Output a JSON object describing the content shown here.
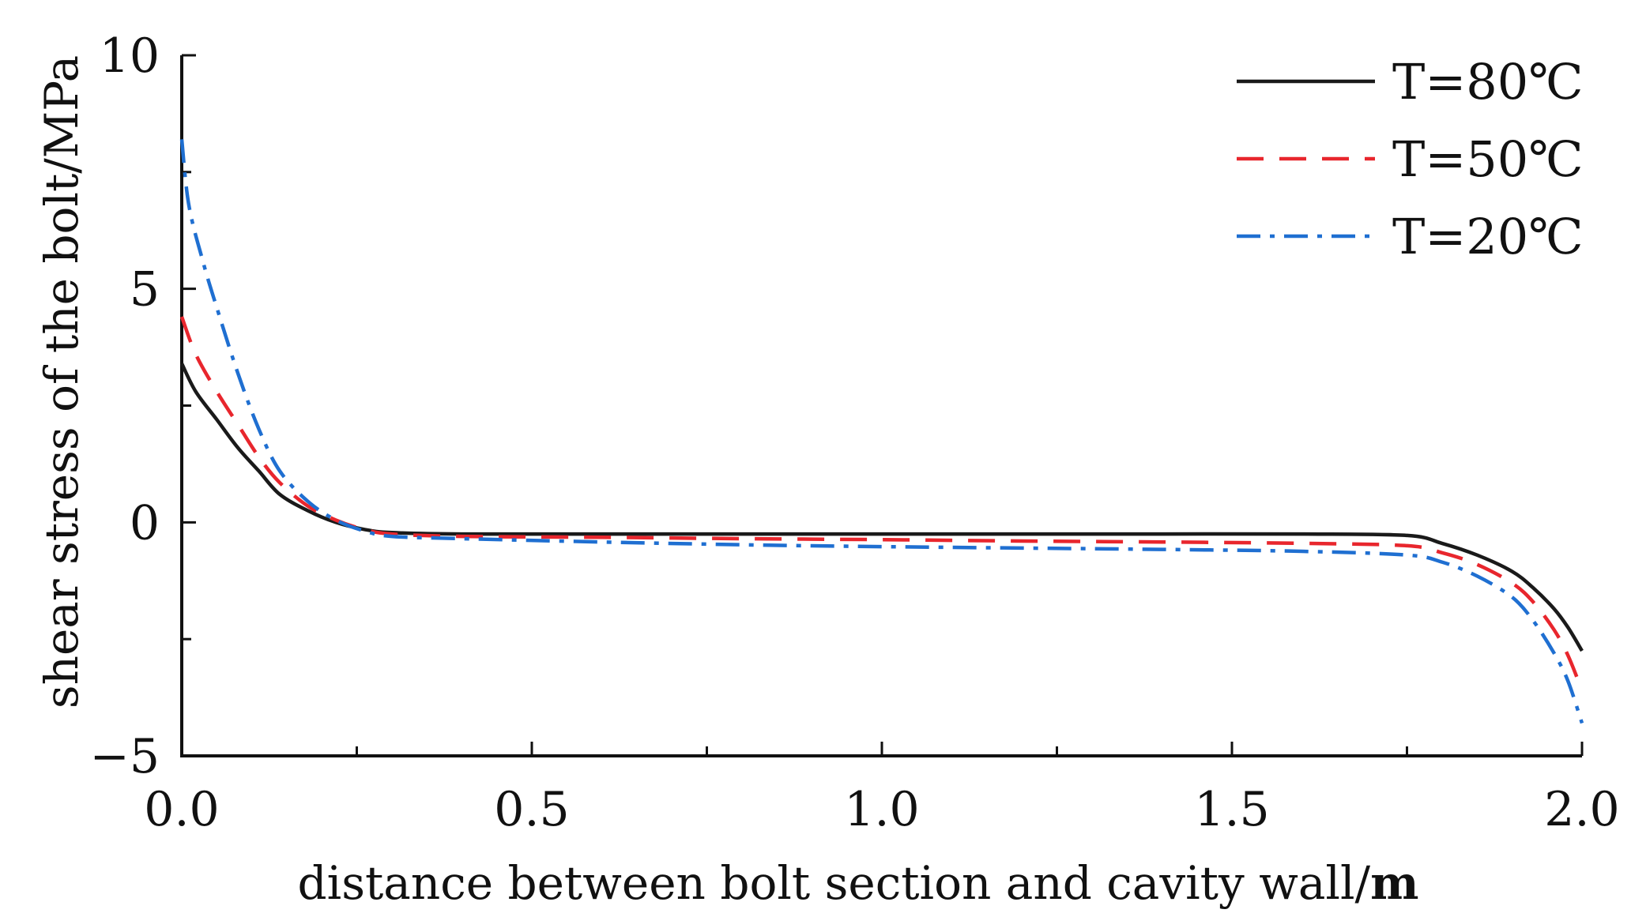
{
  "chart_data": {
    "type": "line",
    "title": "",
    "xlabel": "distance between bolt section and cavity wall/",
    "xlabel_unit": "m",
    "ylabel": "shear stress of the bolt/MPa",
    "xlim": [
      0.0,
      2.0
    ],
    "ylim": [
      -5,
      10
    ],
    "x_ticks": [
      {
        "value": 0.0,
        "label": "0.0"
      },
      {
        "value": 0.5,
        "label": "0.5"
      },
      {
        "value": 1.0,
        "label": "1.0"
      },
      {
        "value": 1.5,
        "label": "1.5"
      },
      {
        "value": 2.0,
        "label": "2.0"
      }
    ],
    "x_minor_ticks": [
      0.25,
      0.75,
      1.25,
      1.75
    ],
    "y_ticks": [
      {
        "value": 10,
        "label": "10"
      },
      {
        "value": 5,
        "label": "5"
      },
      {
        "value": 0,
        "label": "0"
      },
      {
        "value": -5,
        "label": "−5"
      }
    ],
    "y_minor_ticks": [
      7.5,
      2.5,
      -2.5
    ],
    "grid": false,
    "legend_position": "top-right",
    "series": [
      {
        "name": "T=80℃",
        "color": "#1a1a1a",
        "dash": "solid",
        "x": [
          0.0,
          0.02,
          0.05,
          0.08,
          0.11,
          0.14,
          0.18,
          0.22,
          0.26,
          0.3,
          0.4,
          0.6,
          0.8,
          1.0,
          1.2,
          1.4,
          1.6,
          1.75,
          1.8,
          1.85,
          1.9,
          1.93,
          1.96,
          1.98,
          2.0
        ],
        "y": [
          3.4,
          2.8,
          2.2,
          1.6,
          1.1,
          0.6,
          0.25,
          0.0,
          -0.15,
          -0.22,
          -0.25,
          -0.25,
          -0.25,
          -0.25,
          -0.25,
          -0.25,
          -0.25,
          -0.28,
          -0.45,
          -0.7,
          -1.05,
          -1.4,
          -1.85,
          -2.25,
          -2.75
        ]
      },
      {
        "name": "T=50℃",
        "color": "#e8262d",
        "dash": "dashed",
        "x": [
          0.0,
          0.02,
          0.05,
          0.08,
          0.11,
          0.14,
          0.18,
          0.22,
          0.26,
          0.3,
          0.4,
          0.6,
          0.8,
          1.0,
          1.2,
          1.4,
          1.6,
          1.75,
          1.8,
          1.85,
          1.9,
          1.93,
          1.96,
          1.98,
          2.0
        ],
        "y": [
          4.4,
          3.6,
          2.8,
          2.1,
          1.4,
          0.85,
          0.35,
          0.05,
          -0.15,
          -0.25,
          -0.3,
          -0.32,
          -0.35,
          -0.37,
          -0.4,
          -0.42,
          -0.45,
          -0.5,
          -0.65,
          -0.9,
          -1.3,
          -1.7,
          -2.3,
          -2.85,
          -3.6
        ]
      },
      {
        "name": "T=20℃",
        "color": "#1f6fd1",
        "dash": "dashdot",
        "x": [
          0.0,
          0.01,
          0.03,
          0.05,
          0.08,
          0.11,
          0.14,
          0.18,
          0.22,
          0.26,
          0.3,
          0.4,
          0.6,
          0.8,
          1.0,
          1.2,
          1.4,
          1.6,
          1.75,
          1.8,
          1.85,
          1.9,
          1.93,
          1.96,
          1.98,
          2.0
        ],
        "y": [
          8.2,
          6.8,
          5.6,
          4.6,
          3.2,
          2.0,
          1.1,
          0.45,
          0.05,
          -0.18,
          -0.3,
          -0.35,
          -0.42,
          -0.48,
          -0.52,
          -0.55,
          -0.58,
          -0.62,
          -0.7,
          -0.85,
          -1.15,
          -1.6,
          -2.1,
          -2.8,
          -3.4,
          -4.3
        ]
      }
    ]
  }
}
